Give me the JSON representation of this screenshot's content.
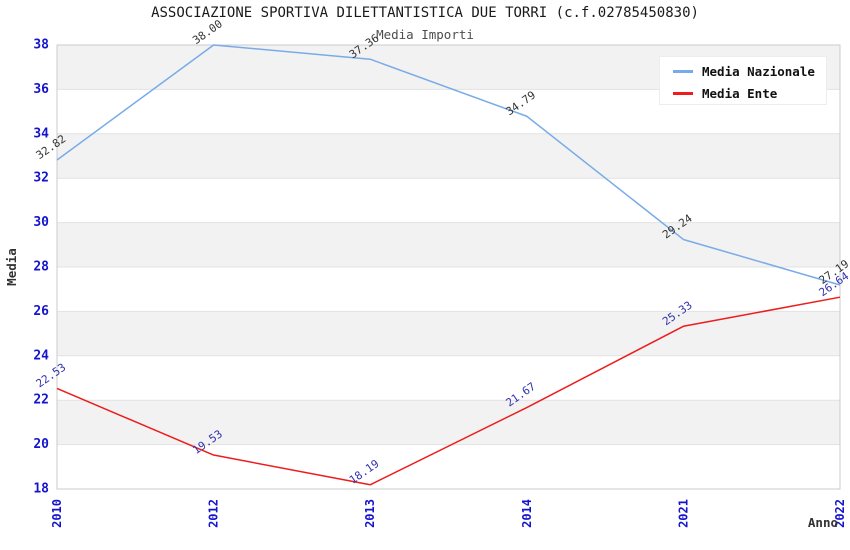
{
  "title": "ASSOCIAZIONE SPORTIVA DILETTANTISTICA DUE TORRI (c.f.02785450830)",
  "subtitle": "Media Importi",
  "legend": {
    "items": [
      {
        "label": "Media Nazionale",
        "color": "#79abe8"
      },
      {
        "label": "Media Ente",
        "color": "#ee1c1c"
      }
    ]
  },
  "colors": {
    "tick_labels": "#1414cc",
    "band_fill": "#f2f2f2",
    "grid_line": "#e2e2e2",
    "plot_border": "#cbcbcb",
    "title": "#1a1a1a",
    "subtitle": "#4d4d4d",
    "axis_label": "#333333",
    "nazionale_line": "#79abe8",
    "nazionale_value_labels": "#333333",
    "ente_line": "#ee1c1c",
    "ente_value_labels": "#3232ae"
  },
  "chart_data": {
    "type": "line",
    "title": "ASSOCIAZIONE SPORTIVA DILETTANTISTICA DUE TORRI (c.f.02785450830)",
    "subtitle": "Media Importi",
    "categories": [
      "2010",
      "2012",
      "2013",
      "2014",
      "2021",
      "2022"
    ],
    "series": [
      {
        "name": "Media Nazionale",
        "values": [
          32.82,
          38.0,
          37.36,
          34.79,
          29.24,
          27.19
        ],
        "color": "#79abe8",
        "label_color": "#333333"
      },
      {
        "name": "Media Ente",
        "values": [
          22.53,
          19.53,
          18.19,
          21.67,
          25.33,
          26.64
        ],
        "color": "#ee1c1c",
        "label_color": "#3232ae"
      }
    ],
    "xlabel": "Anno",
    "ylabel": "Media",
    "ylim": [
      18,
      38
    ],
    "yticks": [
      18,
      20,
      22,
      24,
      26,
      28,
      30,
      32,
      34,
      36,
      38
    ],
    "grid": "horizontal-alternating-bands",
    "legend_position": "top-right",
    "value_label_format": "2-decimals-rotated"
  }
}
